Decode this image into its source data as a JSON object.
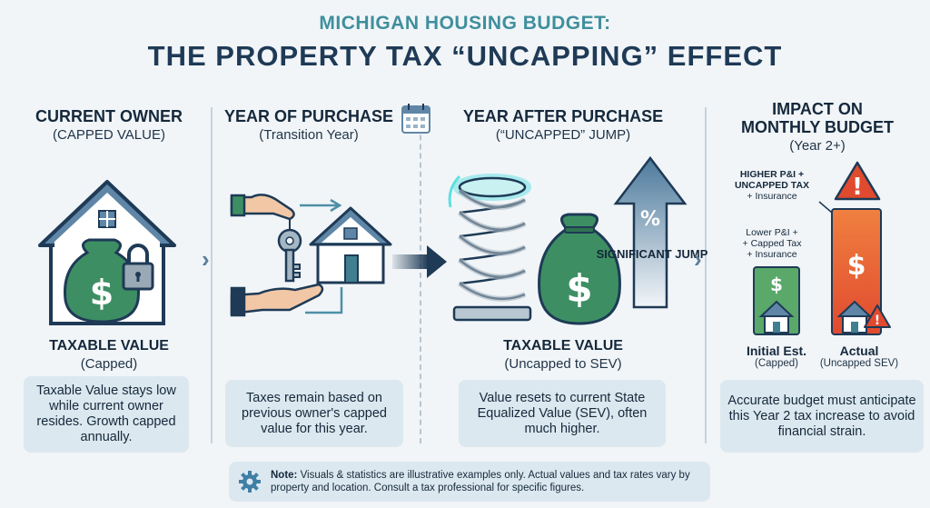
{
  "header": {
    "title_line1": "MICHIGAN HOUSING BUDGET:",
    "title_line2": "THE PROPERTY TAX “UNCAPPING” EFFECT"
  },
  "columns": [
    {
      "title": "CURRENT OWNER",
      "subtitle": "(CAPPED VALUE)",
      "value_label": "TAXABLE VALUE",
      "value_sub": "(Capped)",
      "description": "Taxable Value stays low while current owner resides. Growth capped annually."
    },
    {
      "title": "YEAR OF PURCHASE",
      "subtitle": "(Transition Year)",
      "description": "Taxes remain based on previous owner's capped value for this year."
    },
    {
      "title": "YEAR AFTER PURCHASE",
      "subtitle": "(“UNCAPPED” JUMP)",
      "value_label": "TAXABLE VALUE",
      "value_sub": "(Uncapped to SEV)",
      "jump_label": "SIGNIFICANT JUMP",
      "arrow_symbol": "%",
      "description": "Value resets to current State Equalized Value (SEV), often much higher."
    },
    {
      "title_line1": "IMPACT ON",
      "title_line2": "MONTHLY BUDGET",
      "subtitle": "(Year 2+)",
      "higher_label_line1": "HIGHER P&I +",
      "higher_label_line2": "UNCAPPED TAX",
      "higher_label_line3": "+ Insurance",
      "lower_label_line1": "Lower P&I +",
      "lower_label_line2": "+ Capped Tax",
      "lower_label_line3": "+ Insurance",
      "bar1_label": "Initial Est.",
      "bar1_sub": "(Capped)",
      "bar2_label": "Actual",
      "bar2_sub": "(Uncapped SEV)",
      "description": "Accurate budget must anticipate this Year 2 tax increase to avoid financial strain."
    }
  ],
  "note": {
    "label": "Note:",
    "text": "Visuals & statistics are illustrative examples only. Actual values and tax rates vary by property and location. Consult a tax professional for specific figures."
  },
  "symbols": {
    "dollar": "$",
    "warning": "!"
  },
  "colors": {
    "navy": "#1e3a56",
    "teal": "#3f8f9d",
    "green": "#5aa86a",
    "orange": "#e8643a",
    "red": "#d9432f"
  }
}
